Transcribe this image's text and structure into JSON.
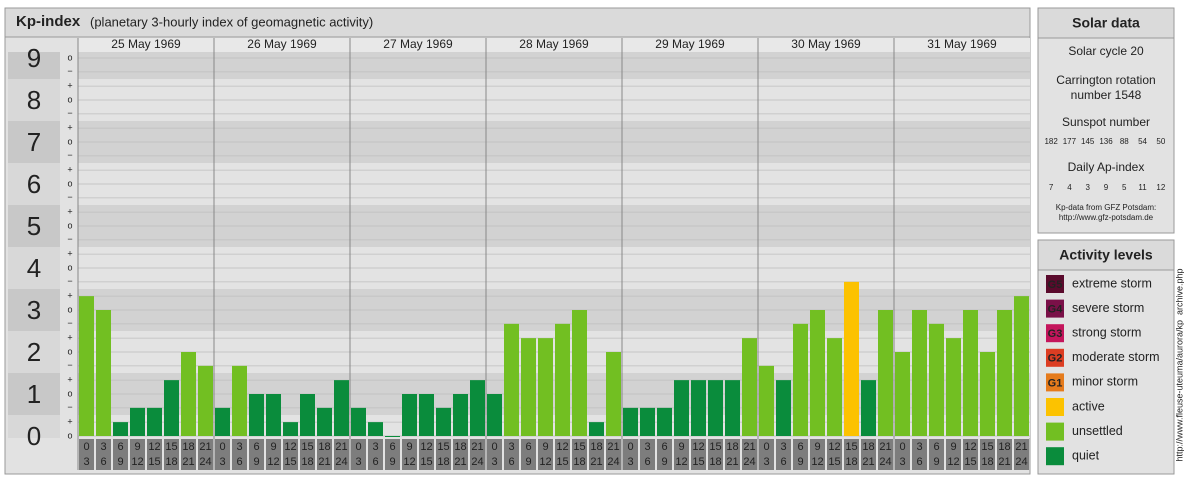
{
  "chart_data": {
    "type": "bar",
    "title": "Kp-index",
    "subtitle": "(planetary 3-hourly index of geomagnetic activity)",
    "intervals": [
      [
        "0",
        "3"
      ],
      [
        "3",
        "6"
      ],
      [
        "6",
        "9"
      ],
      [
        "9",
        "12"
      ],
      [
        "12",
        "15"
      ],
      [
        "15",
        "18"
      ],
      [
        "18",
        "21"
      ],
      [
        "21",
        "24"
      ]
    ],
    "days": [
      {
        "date": "25 May 1969",
        "values": [
          3.33,
          3,
          0.33,
          0.67,
          0.67,
          1.33,
          2,
          1.67
        ],
        "colors": [
          "#72bf22",
          "#72bf22",
          "#0a8c3c",
          "#0a8c3c",
          "#0a8c3c",
          "#0a8c3c",
          "#72bf22",
          "#72bf22"
        ]
      },
      {
        "date": "26 May 1969",
        "values": [
          0.67,
          1.67,
          1,
          1,
          0.33,
          1,
          0.67,
          1.33
        ],
        "colors": [
          "#0a8c3c",
          "#72bf22",
          "#0a8c3c",
          "#0a8c3c",
          "#0a8c3c",
          "#0a8c3c",
          "#0a8c3c",
          "#0a8c3c"
        ]
      },
      {
        "date": "27 May 1969",
        "values": [
          0.67,
          0.33,
          0,
          1,
          1,
          0.67,
          1,
          1.33
        ],
        "colors": [
          "#0a8c3c",
          "#0a8c3c",
          "#0a8c3c",
          "#0a8c3c",
          "#0a8c3c",
          "#0a8c3c",
          "#0a8c3c",
          "#0a8c3c"
        ]
      },
      {
        "date": "28 May 1969",
        "values": [
          1,
          2.67,
          2.33,
          2.33,
          2.67,
          3,
          0.33,
          2
        ],
        "colors": [
          "#0a8c3c",
          "#72bf22",
          "#72bf22",
          "#72bf22",
          "#72bf22",
          "#72bf22",
          "#0a8c3c",
          "#72bf22"
        ]
      },
      {
        "date": "29 May 1969",
        "values": [
          0.67,
          0.67,
          0.67,
          1.33,
          1.33,
          1.33,
          1.33,
          2.33
        ],
        "colors": [
          "#0a8c3c",
          "#0a8c3c",
          "#0a8c3c",
          "#0a8c3c",
          "#0a8c3c",
          "#0a8c3c",
          "#0a8c3c",
          "#72bf22"
        ]
      },
      {
        "date": "30 May 1969",
        "values": [
          1.67,
          1.33,
          2.67,
          3,
          2.33,
          3.67,
          1.33,
          3
        ],
        "colors": [
          "#72bf22",
          "#0a8c3c",
          "#72bf22",
          "#72bf22",
          "#72bf22",
          "#fcc200",
          "#0a8c3c",
          "#72bf22"
        ]
      },
      {
        "date": "31 May 1969",
        "values": [
          2,
          3,
          2.67,
          2.33,
          3,
          2,
          3,
          3.33
        ],
        "colors": [
          "#72bf22",
          "#72bf22",
          "#72bf22",
          "#72bf22",
          "#72bf22",
          "#72bf22",
          "#72bf22",
          "#72bf22"
        ]
      }
    ],
    "ylim": [
      0,
      9.2
    ],
    "yticks": [
      0,
      1,
      2,
      3,
      4,
      5,
      6,
      7,
      8,
      9
    ],
    "minor_yticks": [
      {
        "value": 9,
        "label": "o"
      },
      {
        "value": 8.67,
        "label": "−"
      },
      {
        "value": 8.33,
        "label": "+"
      },
      {
        "value": 8,
        "label": "o"
      },
      {
        "value": 7.67,
        "label": "−"
      },
      {
        "value": 7.33,
        "label": "+"
      },
      {
        "value": 7,
        "label": "o"
      },
      {
        "value": 6.67,
        "label": "−"
      },
      {
        "value": 6.33,
        "label": "+"
      },
      {
        "value": 6,
        "label": "o"
      },
      {
        "value": 5.67,
        "label": "−"
      },
      {
        "value": 5.33,
        "label": "+"
      },
      {
        "value": 5,
        "label": "o"
      },
      {
        "value": 4.67,
        "label": "−"
      },
      {
        "value": 4.33,
        "label": "+"
      },
      {
        "value": 4,
        "label": "o"
      },
      {
        "value": 3.67,
        "label": "−"
      },
      {
        "value": 3.33,
        "label": "+"
      },
      {
        "value": 3,
        "label": "o"
      },
      {
        "value": 2.67,
        "label": "−"
      },
      {
        "value": 2.33,
        "label": "+"
      },
      {
        "value": 2,
        "label": "o"
      },
      {
        "value": 1.67,
        "label": "−"
      },
      {
        "value": 1.33,
        "label": "+"
      },
      {
        "value": 1,
        "label": "o"
      },
      {
        "value": 0.67,
        "label": "−"
      },
      {
        "value": 0.33,
        "label": "+"
      },
      {
        "value": 0,
        "label": "o"
      }
    ],
    "grid": true
  },
  "solar_data": {
    "title": "Solar data",
    "cycle": "Solar cycle 20",
    "carrington": [
      "Carrington rotation",
      "number 1548"
    ],
    "sunspot_title": "Sunspot number",
    "sunspot": [
      182,
      177,
      145,
      136,
      88,
      54,
      50
    ],
    "ap_title": "Daily Ap-index",
    "ap": [
      7,
      4,
      3,
      9,
      5,
      11,
      12
    ],
    "source": [
      "Kp-data from GFZ Potsdam:",
      "http://www.gfz-potsdam.de"
    ]
  },
  "activity_levels": {
    "title": "Activity levels",
    "items": [
      {
        "code": "G5",
        "label": "extreme storm",
        "color": "#5a0a2c"
      },
      {
        "code": "G4",
        "label": "severe storm",
        "color": "#7a1048"
      },
      {
        "code": "G3",
        "label": "strong storm",
        "color": "#c4155c"
      },
      {
        "code": "G2",
        "label": "moderate storm",
        "color": "#dc3d22"
      },
      {
        "code": "G1",
        "label": "minor storm",
        "color": "#e57b1c"
      },
      {
        "label": "active",
        "color": "#fcc200"
      },
      {
        "label": "unsettled",
        "color": "#72bf22"
      },
      {
        "label": "quiet",
        "color": "#0a8c3c"
      }
    ]
  },
  "credit": "http://www.fleuse-uteuma/aurora/kp_archive.php"
}
